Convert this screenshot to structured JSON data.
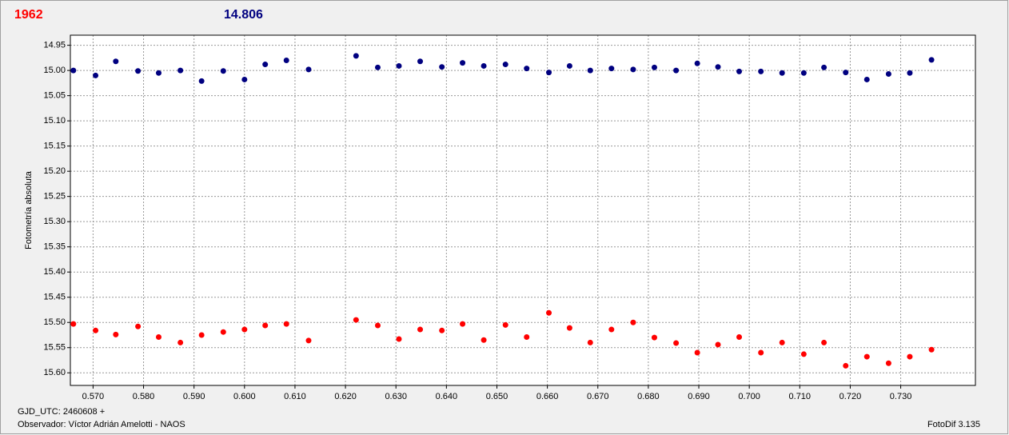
{
  "chart_data": {
    "type": "scatter",
    "header_left": "1962",
    "header_right": "14.806",
    "ylabel": "Fotometría absoluta",
    "footer_left_1": "GJD_UTC: 2460608 +",
    "footer_left_2": "Observador: Víctor Adrián Amelotti - NAOS",
    "footer_right": "FotoDif 3.135",
    "xlim": [
      0.5655,
      0.7448
    ],
    "ylim": [
      14.93,
      15.625
    ],
    "y_inverted": true,
    "grid": true,
    "xticks": [
      {
        "value": 0.57,
        "label": "0.570"
      },
      {
        "value": 0.58,
        "label": "0.580"
      },
      {
        "value": 0.59,
        "label": "0.590"
      },
      {
        "value": 0.6,
        "label": "0.600"
      },
      {
        "value": 0.61,
        "label": "0.610"
      },
      {
        "value": 0.62,
        "label": "0.620"
      },
      {
        "value": 0.63,
        "label": "0.630"
      },
      {
        "value": 0.64,
        "label": "0.640"
      },
      {
        "value": 0.65,
        "label": "0.650"
      },
      {
        "value": 0.66,
        "label": "0.660"
      },
      {
        "value": 0.67,
        "label": "0.670"
      },
      {
        "value": 0.68,
        "label": "0.680"
      },
      {
        "value": 0.69,
        "label": "0.690"
      },
      {
        "value": 0.7,
        "label": "0.700"
      },
      {
        "value": 0.71,
        "label": "0.710"
      },
      {
        "value": 0.72,
        "label": "0.720"
      },
      {
        "value": 0.73,
        "label": "0.730"
      }
    ],
    "yticks": [
      14.95,
      {
        "value": 15,
        "label": "15.00"
      },
      15.05,
      {
        "value": 15.1,
        "label": "15.10"
      },
      15.15,
      {
        "value": 15.2,
        "label": "15.20"
      },
      15.25,
      {
        "value": 15.3,
        "label": "15.30"
      },
      15.35,
      {
        "value": 15.4,
        "label": "15.40"
      },
      15.45,
      {
        "value": 15.5,
        "label": "15.50"
      },
      15.55,
      {
        "value": 15.6,
        "label": "15.60"
      }
    ],
    "x": [
      0.5661,
      0.5705,
      0.5745,
      0.5789,
      0.583,
      0.5873,
      0.5915,
      0.5958,
      0.6,
      0.6041,
      0.6083,
      0.6127,
      0.6221,
      0.6264,
      0.6306,
      0.6348,
      0.6391,
      0.6432,
      0.6474,
      0.6517,
      0.6559,
      0.6603,
      0.6644,
      0.6685,
      0.6727,
      0.677,
      0.6812,
      0.6855,
      0.6897,
      0.6938,
      0.698,
      0.7023,
      0.7065,
      0.7108,
      0.7148,
      0.7191,
      0.7233,
      0.7276,
      0.7318,
      0.7361
    ],
    "series": [
      {
        "color": "#000080",
        "values": [
          15.0,
          15.01,
          14.982,
          15.001,
          15.005,
          15.0,
          15.021,
          15.001,
          15.018,
          14.988,
          14.98,
          14.998,
          14.971,
          14.994,
          14.991,
          14.982,
          14.993,
          14.985,
          14.991,
          14.988,
          14.996,
          15.004,
          14.991,
          15.0,
          14.996,
          14.998,
          14.994,
          15.0,
          14.986,
          14.993,
          15.002,
          15.002,
          15.005,
          15.005,
          14.994,
          15.004,
          15.018,
          15.007,
          15.005,
          14.979
        ]
      },
      {
        "color": "#ff0000",
        "values": [
          15.503,
          15.516,
          15.524,
          15.508,
          15.529,
          15.54,
          15.525,
          15.519,
          15.514,
          15.506,
          15.503,
          15.536,
          15.495,
          15.506,
          15.533,
          15.514,
          15.516,
          15.503,
          15.535,
          15.505,
          15.529,
          15.481,
          15.511,
          15.54,
          15.514,
          15.5,
          15.53,
          15.541,
          15.56,
          15.544,
          15.529,
          15.56,
          15.54,
          15.563,
          15.54,
          15.586,
          15.568,
          15.581,
          15.568,
          15.554
        ]
      }
    ]
  }
}
